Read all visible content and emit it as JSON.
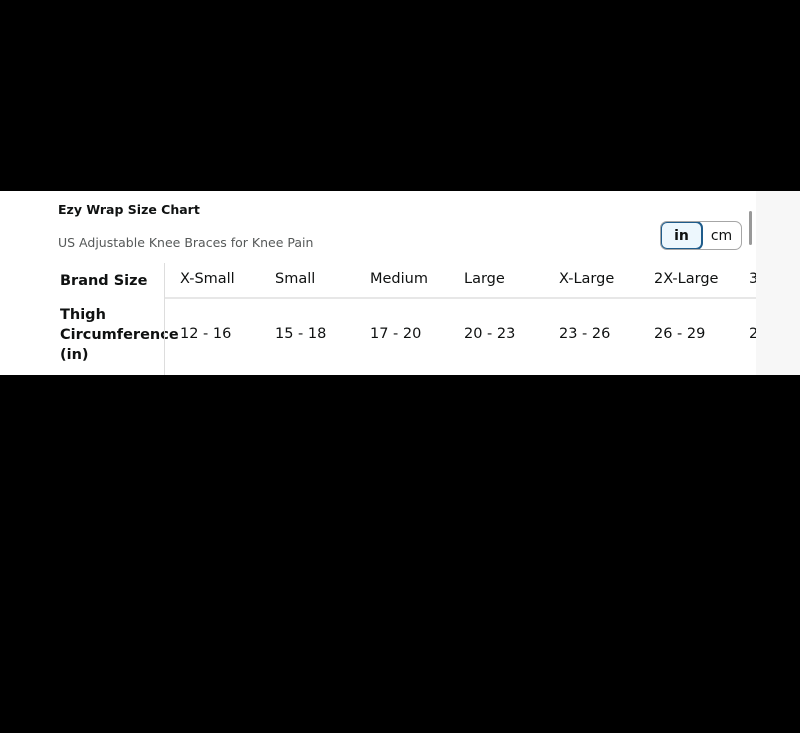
{
  "title": "Ezy Wrap Size Chart",
  "subtitle": "US Adjustable Knee Braces for Knee Pain",
  "unit_toggle": {
    "options": [
      "in",
      "cm"
    ],
    "selected": "in",
    "accent": "#1f5c8b"
  },
  "table": {
    "row_headers": [
      "Brand Size",
      "Thigh Circumference (in)"
    ],
    "row_header_lines": [
      "Thigh",
      "Circumference",
      "(in)"
    ],
    "sizes": [
      "X-Small",
      "Small",
      "Medium",
      "Large",
      "X-Large",
      "2X-Large",
      "3"
    ],
    "thigh": [
      "12 - 16",
      "15 - 18",
      "17 - 20",
      "20 - 23",
      "23 - 26",
      "26 - 29",
      "2"
    ]
  }
}
